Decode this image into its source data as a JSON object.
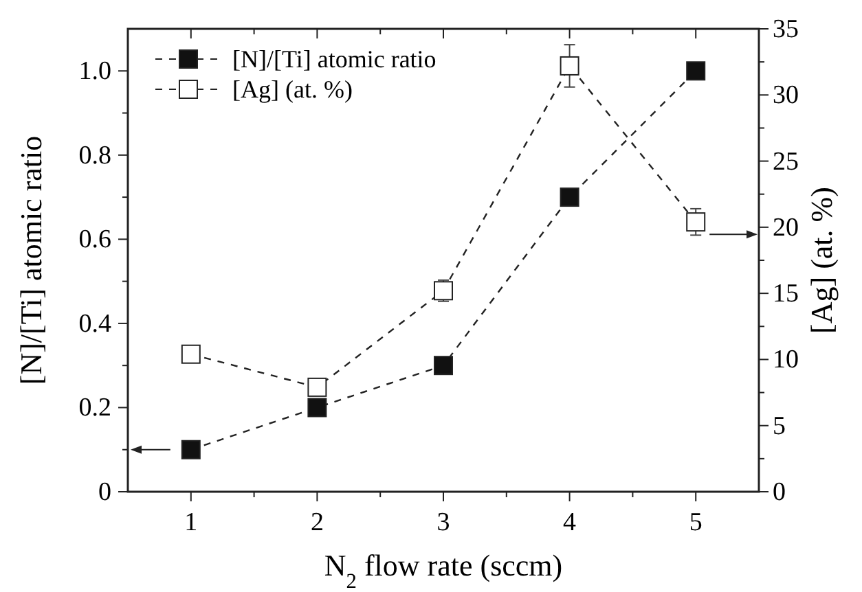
{
  "chart_data": {
    "type": "line",
    "xlabel": "N$_{2}$ flow rate (sccm)",
    "ylabel": "[N]/[Ti] atomic ratio",
    "y2label": "[Ag] (at. %)",
    "x": [
      1,
      2,
      3,
      4,
      5
    ],
    "series": [
      {
        "name": "[N]/[Ti] atomic ratio",
        "color": "#111111",
        "values": [
          0.1,
          0.2,
          0.3,
          0.7,
          1.0
        ]
      },
      {
        "name": "[Ag] (at. %)",
        "color": "#ffffff",
        "axis": "y2",
        "values": [
          10.4,
          7.9,
          15.2,
          32.2,
          20.4
        ],
        "errors": [
          null,
          null,
          0.8,
          1.6,
          1.0
        ]
      }
    ],
    "xlim": [
      0.5,
      5.5
    ],
    "xticks": [
      1,
      {
        "value": 1.5,
        "label": null
      },
      2,
      {
        "value": 2.5,
        "label": null
      },
      3,
      {
        "value": 3.5,
        "label": null
      },
      4,
      {
        "value": 4.5,
        "label": null
      },
      5
    ],
    "ylim": [
      0,
      1.1
    ],
    "yticks": [
      0,
      {
        "value": 0.1,
        "label": null
      },
      0.2,
      {
        "value": 0.3,
        "label": null
      },
      0.4,
      {
        "value": 0.5,
        "label": null
      },
      0.6,
      {
        "value": 0.7,
        "label": null
      },
      0.8,
      {
        "value": 0.9,
        "label": null
      },
      {
        "value": 1,
        "label": "1.0"
      }
    ],
    "y2lim": [
      0,
      35
    ],
    "y2ticks": [
      0,
      {
        "value": 2.5,
        "label": null
      },
      5,
      {
        "value": 7.5,
        "label": null
      },
      10,
      {
        "value": 12.5,
        "label": null
      },
      15,
      {
        "value": 17.5,
        "label": null
      },
      20,
      {
        "value": 22.5,
        "label": null
      },
      25,
      {
        "value": 27.5,
        "label": null
      },
      30,
      {
        "value": 32.5,
        "label": null
      },
      35
    ],
    "marker": "square",
    "line_style": "dashed",
    "legend": "top left",
    "grid": false
  }
}
